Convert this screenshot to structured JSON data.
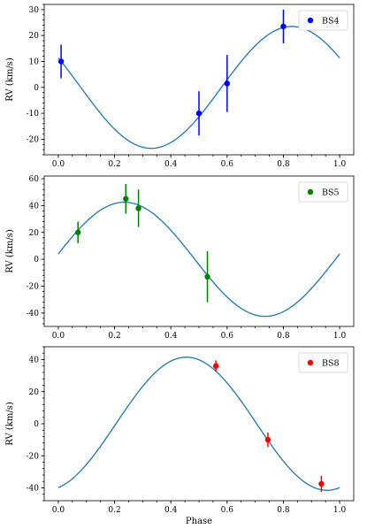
{
  "chart_data": [
    {
      "type": "scatter",
      "series": [
        {
          "name": "BS4",
          "color": "#0000ff",
          "points": [
            {
              "x": 0.01,
              "y": 10,
              "yerr": 6.5
            },
            {
              "x": 0.5,
              "y": -10,
              "yerr": 8.5
            },
            {
              "x": 0.6,
              "y": 1.5,
              "yerr": 11
            },
            {
              "x": 0.8,
              "y": 23.5,
              "yerr": 6.5
            }
          ]
        }
      ],
      "model": {
        "amplitude": 23.5,
        "peak_phase": 0.83,
        "offset": 0,
        "color": "#1f77b4"
      },
      "xlabel": "",
      "ylabel": "RV (km/s)",
      "xlim": [
        -0.05,
        1.05
      ],
      "ylim": [
        -26,
        32
      ],
      "xticks": [
        "0.0",
        "0.2",
        "0.4",
        "0.6",
        "0.8",
        "1.0"
      ],
      "yticks": [
        "-20",
        "-10",
        "0",
        "10",
        "20",
        "30"
      ],
      "legend": "top-right",
      "grid": false
    },
    {
      "type": "scatter",
      "series": [
        {
          "name": "BS5",
          "color": "#008000",
          "points": [
            {
              "x": 0.07,
              "y": 20,
              "yerr": 8
            },
            {
              "x": 0.24,
              "y": 45,
              "yerr": 11
            },
            {
              "x": 0.285,
              "y": 38,
              "yerr": 14
            },
            {
              "x": 0.53,
              "y": -13,
              "yerr": 19
            }
          ]
        }
      ],
      "model": {
        "amplitude": 42.5,
        "peak_phase": 0.235,
        "offset": 0,
        "color": "#1f77b4"
      },
      "xlabel": "",
      "ylabel": "RV (km/s)",
      "xlim": [
        -0.05,
        1.05
      ],
      "ylim": [
        -50,
        62
      ],
      "xticks": [
        "0.0",
        "0.2",
        "0.4",
        "0.6",
        "0.8",
        "1.0"
      ],
      "yticks": [
        "-40",
        "-20",
        "0",
        "20",
        "40",
        "60"
      ],
      "legend": "top-right",
      "grid": false
    },
    {
      "type": "scatter",
      "series": [
        {
          "name": "BS8",
          "color": "#ff0000",
          "points": [
            {
              "x": 0.56,
              "y": 36,
              "yerr": 3.5
            },
            {
              "x": 0.745,
              "y": -10,
              "yerr": 4.5
            },
            {
              "x": 0.935,
              "y": -37.5,
              "yerr": 5
            }
          ]
        }
      ],
      "model": {
        "amplitude": 41.5,
        "peak_phase": 0.455,
        "offset": 0,
        "color": "#1f77b4"
      },
      "xlabel": "Phase",
      "ylabel": "RV (km/s)",
      "xlim": [
        -0.05,
        1.05
      ],
      "ylim": [
        -48,
        48
      ],
      "xticks": [
        "0.0",
        "0.2",
        "0.4",
        "0.6",
        "0.8",
        "1.0"
      ],
      "yticks": [
        "-40",
        "-20",
        "0",
        "20",
        "40"
      ],
      "legend": "top-right",
      "grid": false
    }
  ]
}
